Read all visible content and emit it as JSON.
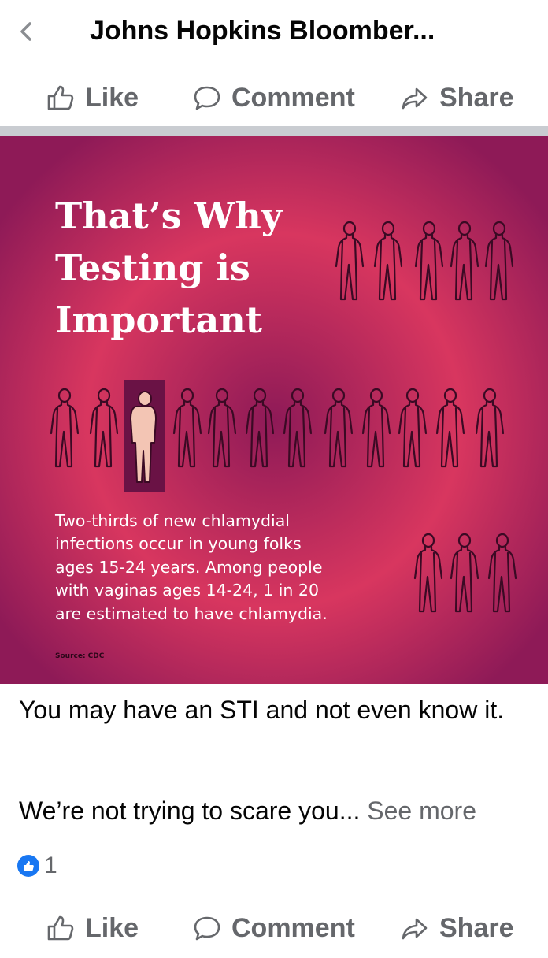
{
  "header": {
    "title": "Johns Hopkins Bloomber...",
    "back_icon": "chevron-left-icon"
  },
  "actions": {
    "like_label": "Like",
    "comment_label": "Comment",
    "share_label": "Share",
    "like_icon": "thumbs-up-icon",
    "comment_icon": "speech-bubble-icon",
    "share_icon": "share-arrow-icon"
  },
  "post_image": {
    "heading_lines": [
      "That’s Why",
      "Testing is",
      "Important"
    ],
    "body_lines": [
      "Two-thirds of new chlamydial",
      "infections occur in young folks",
      "ages 15-24 years.  Among people",
      "with vaginas ages 14-24, 1 in 20",
      "are estimated to have chlamydia."
    ],
    "source": "Source: CDC",
    "colors": {
      "background": "#8e1a57",
      "glow": "#d8365f",
      "text": "#ffffff",
      "outline": "#3a0a24",
      "highlight_fill": "#f3c5b4",
      "highlight_box": "#6a1245"
    }
  },
  "caption": {
    "text": "You may have an STI and not even know it.",
    "preview": "We’re not trying to scare you...",
    "see_more": "See more"
  },
  "reactions": {
    "count": "1",
    "icon": "like-reaction-icon"
  },
  "colors": {
    "accent": "#1877f2",
    "muted": "#65676b",
    "divider": "#ced0d4"
  }
}
